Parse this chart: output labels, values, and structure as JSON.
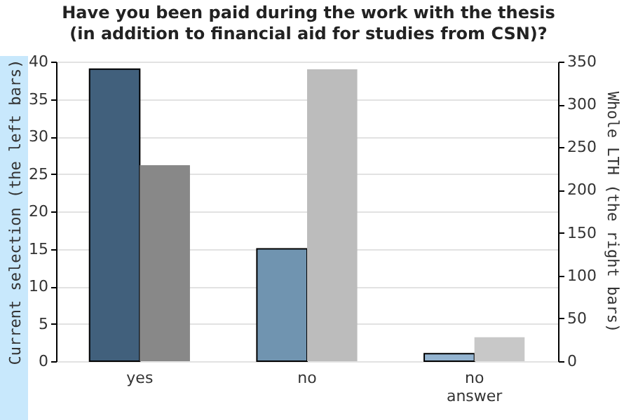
{
  "chart_data": {
    "type": "bar",
    "title": "Have you been paid during the work with the thesis (in addition to financial aid for studies from CSN)?",
    "categories": [
      "yes",
      "no",
      "no answer"
    ],
    "series": [
      {
        "values": [
          39,
          15,
          1
        ],
        "colors": [
          "#41607c",
          "#7094b0",
          "#94b4d0"
        ]
      },
      {
        "values": [
          229,
          341,
          28
        ],
        "colors": [
          "#888888",
          "#bcbcbc",
          "#c8c8c8"
        ],
        "axis": "y2"
      }
    ],
    "ylabel": "Current selection (the left bars)",
    "y2label": "Whole LTH (the right bars)",
    "ylim": [
      0,
      40
    ],
    "yticks": [
      0,
      5,
      10,
      15,
      20,
      25,
      30,
      35,
      40
    ],
    "y2lim": [
      0,
      350
    ],
    "y2ticks": [
      0,
      50,
      100,
      150,
      200,
      250,
      300,
      350
    ],
    "grid": "y",
    "legend": false
  }
}
